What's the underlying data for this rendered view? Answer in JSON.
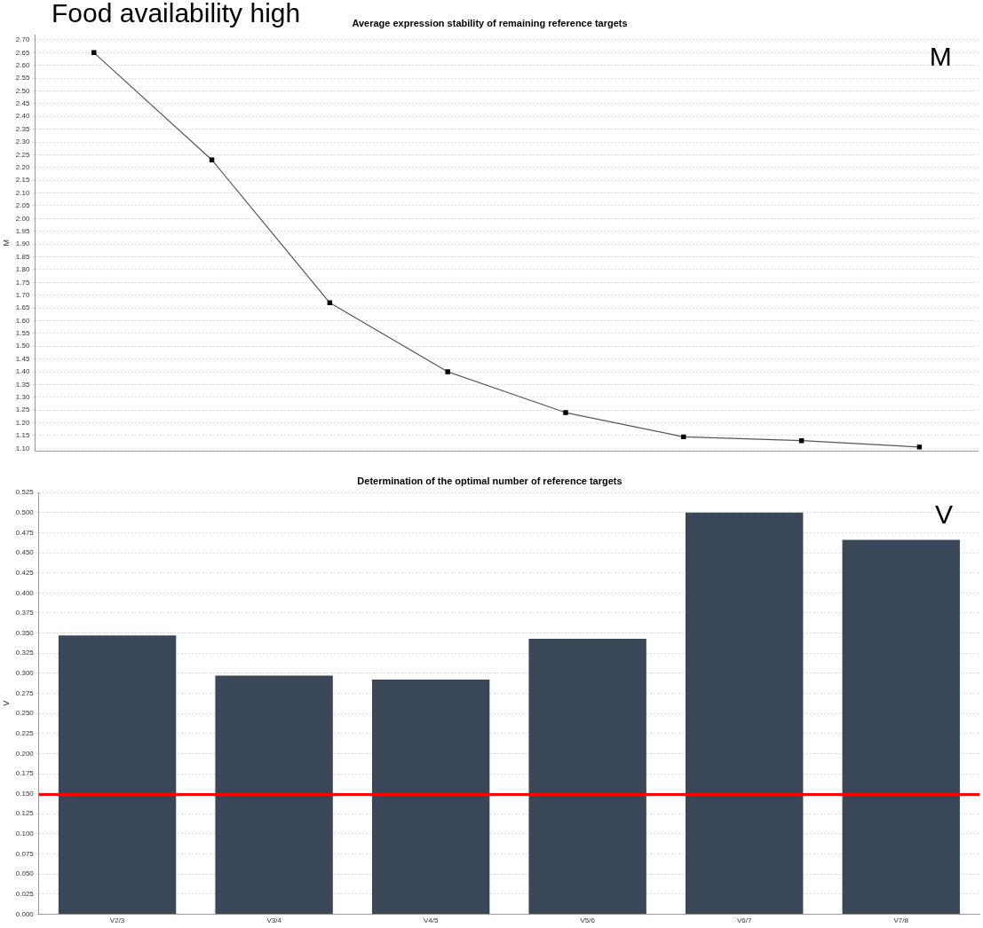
{
  "chart_data": [
    {
      "type": "line",
      "title": "Average expression stability of remaining reference targets",
      "ylabel": "M",
      "annotations": [
        "Food availability high",
        "M"
      ],
      "categories": [
        null,
        null,
        null,
        null,
        null,
        null,
        null,
        null
      ],
      "series": [
        {
          "color": "#555555",
          "values": [
            2.65,
            2.23,
            1.67,
            1.4,
            1.24,
            1.145,
            1.13,
            1.105
          ]
        }
      ],
      "marker": "square",
      "line_style": "solid",
      "grid": "y",
      "legend": false,
      "tick_labels": "y",
      "ylim": [
        1.09,
        2.72
      ],
      "yticks": [
        {
          "value": 1.1,
          "label": "1.10"
        },
        {
          "value": 1.15,
          "label": "1.15"
        },
        {
          "value": 1.2,
          "label": "1.20"
        },
        {
          "value": 1.25,
          "label": "1.25"
        },
        {
          "value": 1.3,
          "label": "1.30"
        },
        {
          "value": 1.35,
          "label": "1.35"
        },
        {
          "value": 1.4,
          "label": "1.40"
        },
        {
          "value": 1.45,
          "label": "1.45"
        },
        {
          "value": 1.5,
          "label": "1.50"
        },
        {
          "value": 1.55,
          "label": "1.55"
        },
        {
          "value": 1.6,
          "label": "1.60"
        },
        {
          "value": 1.65,
          "label": "1.65"
        },
        {
          "value": 1.7,
          "label": "1.70"
        },
        {
          "value": 1.75,
          "label": "1.75"
        },
        {
          "value": 1.8,
          "label": "1.80"
        },
        {
          "value": 1.85,
          "label": "1.85"
        },
        {
          "value": 1.9,
          "label": "1.90"
        },
        {
          "value": 1.95,
          "label": "1.95"
        },
        {
          "value": 2.0,
          "label": "2.00"
        },
        {
          "value": 2.05,
          "label": "2.05"
        },
        {
          "value": 2.1,
          "label": "2.10"
        },
        {
          "value": 2.15,
          "label": "2.15"
        },
        {
          "value": 2.2,
          "label": "2.20"
        },
        {
          "value": 2.25,
          "label": "2.25"
        },
        {
          "value": 2.3,
          "label": "2.30"
        },
        {
          "value": 2.35,
          "label": "2.35"
        },
        {
          "value": 2.4,
          "label": "2.40"
        },
        {
          "value": 2.45,
          "label": "2.45"
        },
        {
          "value": 2.5,
          "label": "2.50"
        },
        {
          "value": 2.55,
          "label": "2.55"
        },
        {
          "value": 2.6,
          "label": "2.60"
        },
        {
          "value": 2.65,
          "label": "2.65"
        },
        {
          "value": 2.7,
          "label": "2.70"
        }
      ]
    },
    {
      "type": "bar",
      "title": "Determination of the optimal number of reference targets",
      "ylabel": "V",
      "annotations": [
        "V"
      ],
      "categories": [
        "V2/3",
        "V3/4",
        "V4/5",
        "V5/6",
        "V6/7",
        "V7/8"
      ],
      "series": [
        {
          "color": "#3a4759",
          "values": [
            0.347,
            0.297,
            0.292,
            0.343,
            0.5,
            0.466
          ]
        }
      ],
      "grid": "y",
      "legend": false,
      "ref_lines": [
        {
          "axis": "y",
          "value": 0.149,
          "color": "#ff0000"
        }
      ],
      "ylim": [
        0,
        0.525
      ],
      "yticks": [
        {
          "value": 0,
          "label": "0.000"
        },
        {
          "value": 0.025,
          "label": "0.025"
        },
        {
          "value": 0.05,
          "label": "0.050"
        },
        {
          "value": 0.075,
          "label": "0.075"
        },
        {
          "value": 0.1,
          "label": "0.100"
        },
        {
          "value": 0.125,
          "label": "0.125"
        },
        {
          "value": 0.15,
          "label": "0.150"
        },
        {
          "value": 0.175,
          "label": "0.175"
        },
        {
          "value": 0.2,
          "label": "0.200"
        },
        {
          "value": 0.225,
          "label": "0.225"
        },
        {
          "value": 0.25,
          "label": "0.250"
        },
        {
          "value": 0.275,
          "label": "0.275"
        },
        {
          "value": 0.3,
          "label": "0.300"
        },
        {
          "value": 0.325,
          "label": "0.325"
        },
        {
          "value": 0.35,
          "label": "0.350"
        },
        {
          "value": 0.375,
          "label": "0.375"
        },
        {
          "value": 0.4,
          "label": "0.400"
        },
        {
          "value": 0.425,
          "label": "0.425"
        },
        {
          "value": 0.45,
          "label": "0.450"
        },
        {
          "value": 0.475,
          "label": "0.475"
        },
        {
          "value": 0.5,
          "label": "0.500"
        },
        {
          "value": 0.525,
          "label": "0.525"
        }
      ]
    }
  ]
}
